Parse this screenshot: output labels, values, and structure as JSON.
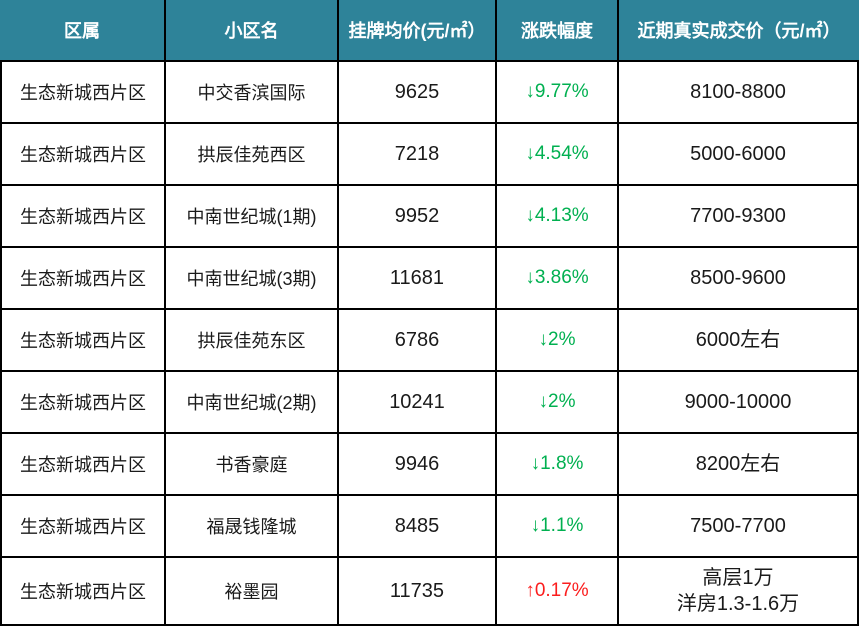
{
  "colors": {
    "header_bg": "#2E8399",
    "header_text": "#FFFFFF",
    "grid_line": "#000000",
    "down_green": "#00B050",
    "up_red": "#FB1D1D",
    "body_text": "#1A1A1A"
  },
  "table": {
    "headers": {
      "district": "区属",
      "community": "小区名",
      "avg_price": "挂牌均价(元/㎡）",
      "change": "涨跌幅度",
      "deal_price": "近期真实成交价（元/㎡）"
    },
    "rows": [
      {
        "district": "生态新城西片区",
        "community": "中交香滨国际",
        "avg_price": "9625",
        "change": "↓9.77%",
        "trend": "down",
        "deal_price": "8100-8800"
      },
      {
        "district": "生态新城西片区",
        "community": "拱辰佳苑西区",
        "avg_price": "7218",
        "change": "↓4.54%",
        "trend": "down",
        "deal_price": "5000-6000"
      },
      {
        "district": "生态新城西片区",
        "community": "中南世纪城(1期)",
        "avg_price": "9952",
        "change": "↓4.13%",
        "trend": "down",
        "deal_price": "7700-9300"
      },
      {
        "district": "生态新城西片区",
        "community": "中南世纪城(3期)",
        "avg_price": "11681",
        "change": "↓3.86%",
        "trend": "down",
        "deal_price": "8500-9600"
      },
      {
        "district": "生态新城西片区",
        "community": "拱辰佳苑东区",
        "avg_price": "6786",
        "change": "↓2%",
        "trend": "down",
        "deal_price": "6000左右"
      },
      {
        "district": "生态新城西片区",
        "community": "中南世纪城(2期)",
        "avg_price": "10241",
        "change": "↓2%",
        "trend": "down",
        "deal_price": "9000-10000"
      },
      {
        "district": "生态新城西片区",
        "community": "书香豪庭",
        "avg_price": "9946",
        "change": "↓1.8%",
        "trend": "down",
        "deal_price": "8200左右"
      },
      {
        "district": "生态新城西片区",
        "community": "福晟钱隆城",
        "avg_price": "8485",
        "change": "↓1.1%",
        "trend": "down",
        "deal_price": "7500-7700"
      },
      {
        "district": "生态新城西片区",
        "community": "裕墨园",
        "avg_price": "11735",
        "change": "↑0.17%",
        "trend": "up",
        "deal_price": "高层1万\n洋房1.3-1.6万"
      }
    ]
  }
}
